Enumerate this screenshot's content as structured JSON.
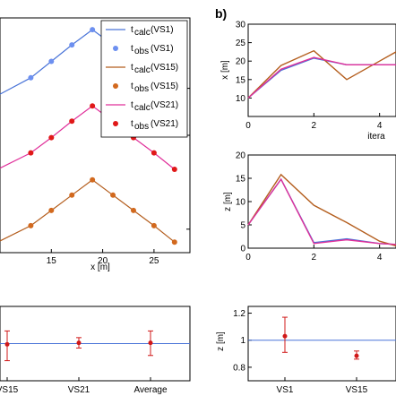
{
  "panel_labels": {
    "b": "b)"
  },
  "chart_data": [
    {
      "id": "a-top",
      "type": "line",
      "title": "",
      "xlabel": "x [m]",
      "ylabel": "",
      "xlim": [
        10,
        28.5
      ],
      "ylim": [
        0,
        1
      ],
      "xticks": [
        15,
        20,
        25
      ],
      "x": [
        13,
        15,
        17,
        19,
        21,
        23,
        25,
        27
      ],
      "series": [
        {
          "name": "VS1",
          "color": "#4a74d8",
          "marker": "#6d90f0",
          "values": [
            0.745,
            0.815,
            0.885,
            0.95,
            0.885,
            0.815,
            0.745,
            0.675
          ]
        },
        {
          "name": "VS15",
          "color": "#b45e1e",
          "marker": "#d2691e",
          "values": [
            0.115,
            0.18,
            0.245,
            0.31,
            0.245,
            0.18,
            0.115,
            0.045
          ]
        },
        {
          "name": "VS21",
          "color": "#e0309a",
          "marker": "#e01818",
          "values": [
            0.425,
            0.49,
            0.56,
            0.625,
            0.56,
            0.49,
            0.425,
            0.355
          ]
        }
      ],
      "legend": {
        "placement": "top-right",
        "entries": [
          {
            "main": "t",
            "sub": "calc",
            "tag": "(VS1)",
            "kind": "line",
            "color": "#4a74d8"
          },
          {
            "main": "t",
            "sub": "obs",
            "tag": "(VS1)",
            "kind": "dot",
            "color": "#6d90f0"
          },
          {
            "main": "t",
            "sub": "calc",
            "tag": "(VS15)",
            "kind": "line",
            "color": "#b45e1e"
          },
          {
            "main": "t",
            "sub": "obs",
            "tag": "(VS15)",
            "kind": "dot",
            "color": "#d2691e"
          },
          {
            "main": "t",
            "sub": "calc",
            "tag": "(VS21)",
            "kind": "line",
            "color": "#e0309a"
          },
          {
            "main": "t",
            "sub": "obs",
            "tag": "(VS21)",
            "kind": "dot",
            "color": "#e01818"
          }
        ]
      }
    },
    {
      "id": "a-bottom",
      "type": "scatter",
      "title": "",
      "xlabel": "",
      "ylabel": "",
      "ylim": [
        0.5,
        1.5
      ],
      "categories": [
        "VS15",
        "VS21",
        "Average"
      ],
      "reference_line": 1.0,
      "points": [
        {
          "category": "VS15",
          "value": 0.99,
          "low": 0.77,
          "high": 1.17
        },
        {
          "category": "VS21",
          "value": 1.01,
          "low": 0.94,
          "high": 1.08
        },
        {
          "category": "Average",
          "value": 1.01,
          "low": 0.84,
          "high": 1.17
        }
      ]
    },
    {
      "id": "b-x",
      "type": "line",
      "title": "",
      "xlabel": "itera",
      "ylabel": "x [m]",
      "xlim": [
        0,
        4.5
      ],
      "ylim": [
        5,
        30
      ],
      "yticks": [
        10,
        15,
        20,
        25,
        30
      ],
      "xticks": [
        0,
        2,
        4
      ],
      "x": [
        0,
        1,
        2,
        3,
        4,
        4.5
      ],
      "series": [
        {
          "name": "VS1",
          "color": "#4a74d8",
          "values": [
            10,
            17.5,
            20.8,
            19,
            19,
            19
          ]
        },
        {
          "name": "VS15",
          "color": "#b45e1e",
          "values": [
            10,
            18.8,
            22.8,
            15,
            20,
            22.5
          ]
        },
        {
          "name": "VS21",
          "color": "#e0309a",
          "values": [
            10,
            17.8,
            21,
            19,
            19,
            19
          ]
        }
      ]
    },
    {
      "id": "b-z",
      "type": "line",
      "title": "",
      "xlabel": "",
      "ylabel": "z [m]",
      "xlim": [
        0,
        4.5
      ],
      "ylim": [
        0,
        20
      ],
      "yticks": [
        0,
        5,
        10,
        15,
        20
      ],
      "xticks": [
        0,
        2,
        4
      ],
      "x": [
        0,
        1,
        2,
        3,
        4,
        4.5
      ],
      "series": [
        {
          "name": "VS1",
          "color": "#4a74d8",
          "values": [
            5,
            14.8,
            1.2,
            2,
            1,
            0.8
          ]
        },
        {
          "name": "VS15",
          "color": "#b45e1e",
          "values": [
            5,
            15.8,
            9.2,
            5.5,
            1.5,
            0.5
          ]
        },
        {
          "name": "VS21",
          "color": "#e0309a",
          "values": [
            5,
            14.8,
            1,
            1.8,
            1,
            0.8
          ]
        }
      ]
    },
    {
      "id": "b-bottom",
      "type": "scatter",
      "title": "",
      "xlabel": "",
      "ylabel": "z [m]",
      "ylim": [
        0.7,
        1.25
      ],
      "yticks": [
        0.8,
        1,
        1.2
      ],
      "categories": [
        "VS1",
        "VS15"
      ],
      "reference_line": 1.0,
      "points": [
        {
          "category": "VS1",
          "value": 1.03,
          "low": 0.91,
          "high": 1.17
        },
        {
          "category": "VS15",
          "value": 0.885,
          "low": 0.86,
          "high": 0.92
        }
      ]
    }
  ]
}
